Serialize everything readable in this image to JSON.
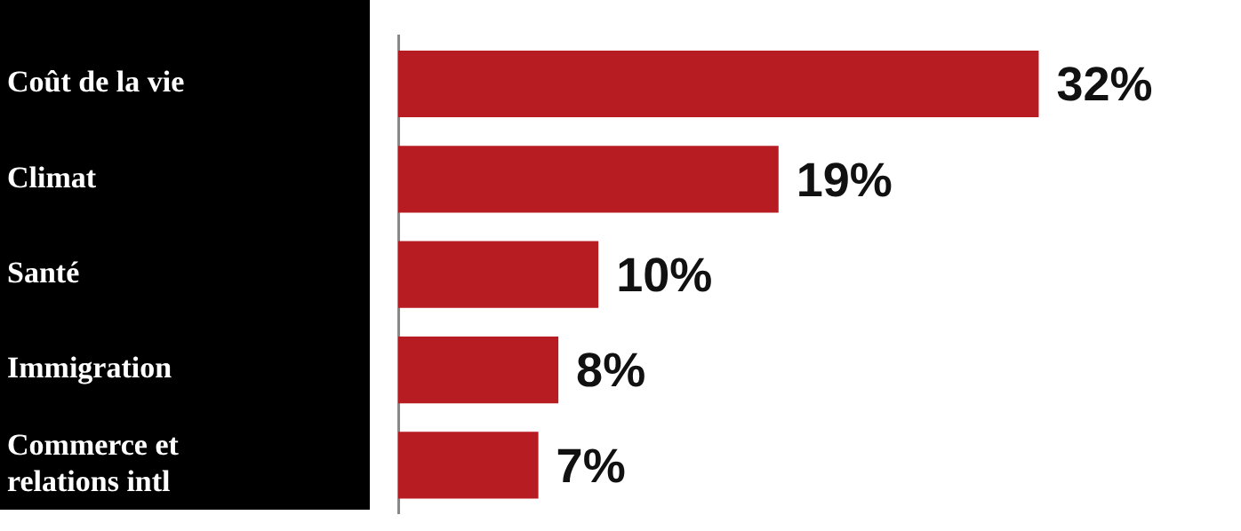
{
  "chart_data": {
    "type": "bar",
    "orientation": "horizontal",
    "categories": [
      "Coût de la vie",
      "Climat",
      "Santé",
      "Immigration",
      "Commerce et relations intl"
    ],
    "values": [
      32,
      19,
      10,
      8,
      7
    ],
    "value_labels": [
      "32%",
      "19%",
      "10%",
      "8%",
      "7%"
    ],
    "color": "#b71c23",
    "tick_labels": "y",
    "grid": false,
    "legend": false
  }
}
